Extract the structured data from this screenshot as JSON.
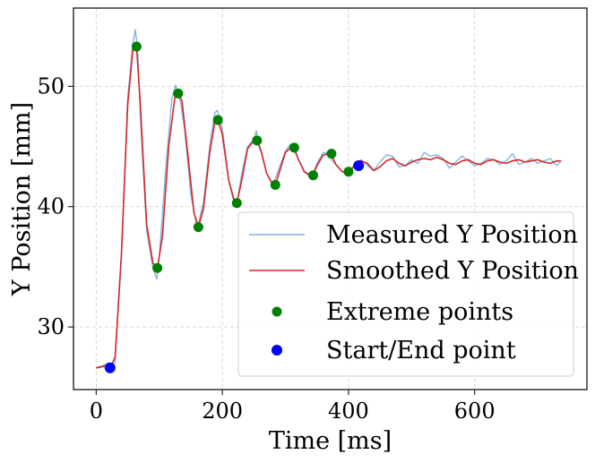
{
  "chart_data": {
    "type": "line",
    "title": "",
    "xlabel": "Time [ms]",
    "ylabel": "Y Position [mm]",
    "xlim": [
      -36,
      778
    ],
    "ylim": [
      24.8,
      56.5
    ],
    "xticks": [
      0,
      200,
      400,
      600
    ],
    "yticks": [
      30,
      40,
      50
    ],
    "xtick_labels": [
      "0",
      "200",
      "400",
      "600"
    ],
    "ytick_labels": [
      "30",
      "40",
      "50"
    ],
    "grid": true,
    "legend_position": "lower-right",
    "colors": {
      "measured": "#5b9bd5",
      "smoothed": "#d62728",
      "extreme": "#008000",
      "start_end": "#0000ff"
    },
    "series": [
      {
        "name": "Measured Y Position",
        "style": "line",
        "x": [
          0,
          10,
          20,
          25,
          30,
          40,
          50,
          58,
          62,
          64,
          66,
          70,
          80,
          90,
          96,
          100,
          110,
          120,
          126,
          130,
          134,
          140,
          150,
          160,
          170,
          180,
          188,
          192,
          196,
          200,
          210,
          220,
          224,
          230,
          240,
          250,
          254,
          258,
          262,
          270,
          280,
          290,
          300,
          308,
          312,
          320,
          330,
          340,
          345,
          350,
          360,
          370,
          374,
          380,
          390,
          400,
          405,
          410,
          420,
          430,
          440,
          450,
          460,
          470,
          480,
          490,
          500,
          510,
          520,
          530,
          540,
          550,
          560,
          570,
          580,
          590,
          600,
          610,
          620,
          630,
          640,
          650,
          660,
          670,
          680,
          690,
          700,
          710,
          720,
          730,
          737
        ],
        "y": [
          26.6,
          26.8,
          27.0,
          26.5,
          27.1,
          36.0,
          49.0,
          53.5,
          54.7,
          53.8,
          52.5,
          47.5,
          38.0,
          34.9,
          34.0,
          35.8,
          43.0,
          49.0,
          50.1,
          49.3,
          48.6,
          46.5,
          41.0,
          38.2,
          40.3,
          45.0,
          47.8,
          48.0,
          47.3,
          46.5,
          42.2,
          40.0,
          40.6,
          42.5,
          45.0,
          45.6,
          46.3,
          45.2,
          44.6,
          42.8,
          41.8,
          43.2,
          44.6,
          45.2,
          44.8,
          44.0,
          42.9,
          42.4,
          42.9,
          43.6,
          44.5,
          44.4,
          43.8,
          43.5,
          42.9,
          42.7,
          43.1,
          43.6,
          43.9,
          43.4,
          43.0,
          43.7,
          44.3,
          44.2,
          43.3,
          43.4,
          43.9,
          43.6,
          44.5,
          44.2,
          44.3,
          44.0,
          43.2,
          43.7,
          44.2,
          43.8,
          43.4,
          43.6,
          44.0,
          43.9,
          43.5,
          43.8,
          44.4,
          43.5,
          43.7,
          44.0,
          43.6,
          43.8,
          44.0,
          43.4,
          43.8
        ]
      },
      {
        "name": "Smoothed Y Position",
        "style": "line",
        "x": [
          0,
          10,
          20,
          25,
          30,
          40,
          50,
          58,
          64,
          70,
          80,
          90,
          97,
          105,
          115,
          125,
          130,
          136,
          145,
          155,
          162,
          170,
          180,
          188,
          193,
          200,
          210,
          220,
          223,
          230,
          240,
          250,
          255,
          262,
          270,
          280,
          284,
          290,
          300,
          310,
          314,
          320,
          330,
          340,
          344,
          350,
          360,
          370,
          373,
          380,
          390,
          400,
          410,
          420,
          430,
          440,
          450,
          460,
          470,
          480,
          490,
          500,
          510,
          520,
          530,
          540,
          550,
          560,
          570,
          580,
          590,
          600,
          610,
          620,
          630,
          640,
          650,
          660,
          670,
          680,
          690,
          700,
          710,
          720,
          730,
          737
        ],
        "y": [
          26.6,
          26.7,
          26.8,
          26.9,
          27.5,
          36.0,
          48.5,
          53.0,
          53.3,
          48.5,
          38.5,
          35.3,
          34.9,
          37.5,
          45.0,
          49.2,
          49.4,
          48.8,
          44.5,
          39.5,
          38.3,
          39.8,
          44.5,
          47.0,
          47.2,
          46.0,
          42.2,
          40.3,
          40.3,
          42.0,
          44.8,
          45.5,
          45.5,
          44.5,
          42.8,
          41.8,
          41.8,
          42.8,
          44.5,
          45.0,
          44.9,
          44.0,
          42.9,
          42.6,
          42.7,
          43.4,
          44.3,
          44.4,
          44.3,
          43.5,
          42.9,
          42.9,
          43.4,
          43.8,
          43.6,
          43.0,
          43.3,
          43.8,
          44.0,
          43.6,
          43.4,
          43.7,
          43.9,
          44.0,
          43.9,
          44.1,
          43.9,
          43.6,
          43.5,
          43.8,
          43.9,
          43.6,
          43.5,
          43.8,
          43.9,
          43.7,
          43.6,
          43.8,
          43.9,
          43.7,
          43.8,
          43.9,
          43.7,
          43.6,
          43.8,
          43.8
        ]
      },
      {
        "name": "Extreme points",
        "style": "points",
        "x": [
          64,
          97,
          130,
          162,
          193,
          223,
          255,
          284,
          314,
          344,
          373,
          400
        ],
        "y": [
          53.3,
          34.9,
          49.4,
          38.3,
          47.2,
          40.3,
          45.5,
          41.8,
          44.9,
          42.6,
          44.4,
          42.9
        ]
      },
      {
        "name": "Start/End point",
        "style": "points",
        "x": [
          22,
          416
        ],
        "y": [
          26.6,
          43.4
        ]
      }
    ]
  }
}
